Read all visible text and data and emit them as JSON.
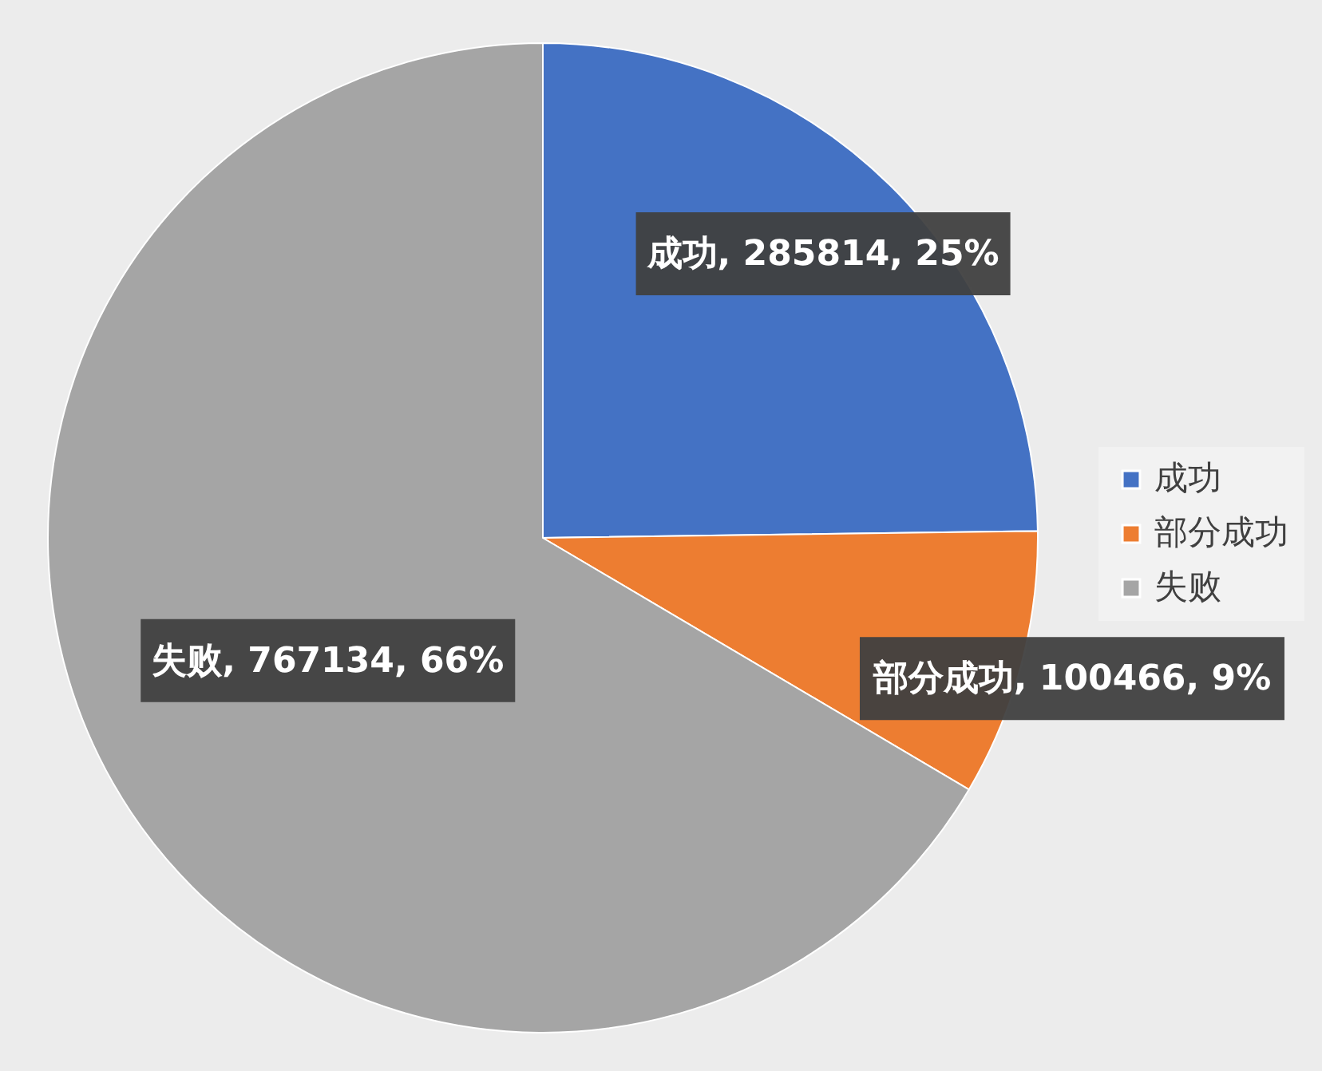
{
  "chart_data": {
    "type": "pie",
    "categories": [
      "成功",
      "部分成功",
      "失败"
    ],
    "values": [
      285814,
      100466,
      767134
    ],
    "colors": [
      "#4472c4",
      "#ed7d31",
      "#a5a5a5"
    ],
    "value_labels": [
      "成功, 285814, 25%",
      "部分成功, 100466, 9%",
      "失败, 767134, 66%"
    ],
    "legend": "right"
  }
}
